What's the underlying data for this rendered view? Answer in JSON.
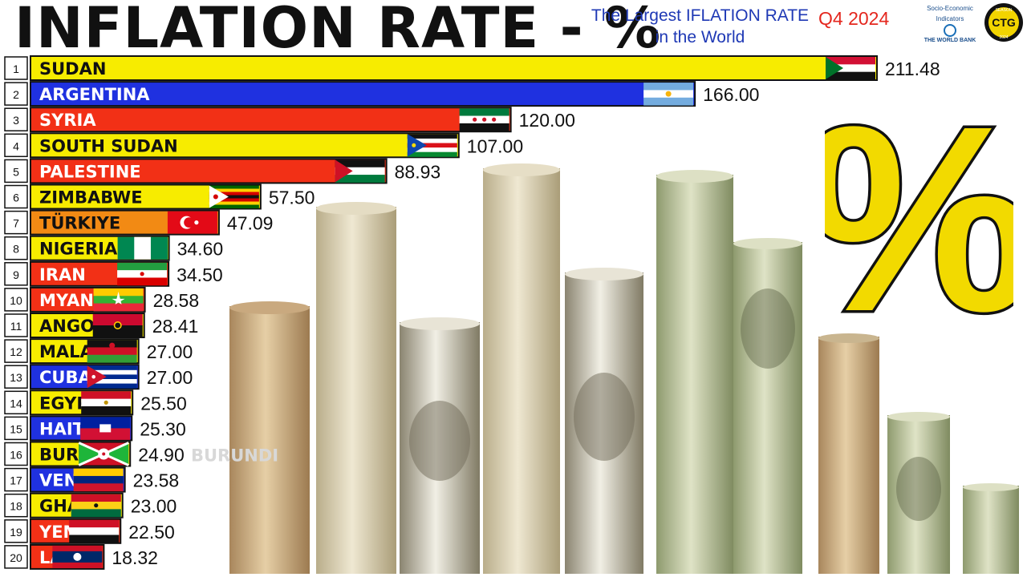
{
  "header": {
    "title": "INFLATION RATE - %",
    "subtitle_line1": "The Largest IFLATION RATE",
    "subtitle_line2": "in the World",
    "period": "Q4  2024"
  },
  "logos": {
    "worldbank_line1": "Socio-Economic",
    "worldbank_line2": "Indicators",
    "worldbank_line3": "THE WORLD BANK",
    "ctg_top": "SEASON",
    "ctg_mid": "CTG",
    "ctg_bottom": "2024"
  },
  "decor": {
    "percent_symbol": "%",
    "percent_color": "#f2da00"
  },
  "chart_data": {
    "type": "bar",
    "orientation": "horizontal",
    "title": "INFLATION RATE - %",
    "categories": [
      "SUDAN",
      "ARGENTINA",
      "SYRIA",
      "SOUTH SUDAN",
      "PALESTINE",
      "ZIMBABWE",
      "TÜRKIYE",
      "NIGERIA",
      "IRAN",
      "MYANMAR",
      "ANGOLA",
      "MALAWI",
      "CUBA",
      "EGYPT",
      "HAITI",
      "BURUNDI",
      "VENEZUELA",
      "GHANA",
      "YEMEN",
      "LAOS"
    ],
    "visible_labels": [
      "SUDAN",
      "ARGENTINA",
      "SYRIA",
      "SOUTH SUDAN",
      "PALESTINE",
      "ZIMBABWE",
      "TÜRKIYE",
      "NIGERIA",
      "IRAN",
      "MYANM",
      "ANGOL",
      "MALAV",
      "CUBA",
      "EGYP",
      "HAIT",
      "BURU",
      "VENE",
      "GHA",
      "YEM",
      "LA"
    ],
    "ranks": [
      "1",
      "2",
      "3",
      "4",
      "5",
      "6",
      "7",
      "8",
      "9",
      "10",
      "11",
      "12",
      "13",
      "14",
      "15",
      "16",
      "17",
      "18",
      "19",
      "20"
    ],
    "values": [
      211.48,
      166.0,
      120.0,
      107.0,
      88.93,
      57.5,
      47.09,
      34.6,
      34.5,
      28.58,
      28.41,
      27.0,
      27.0,
      25.5,
      25.3,
      24.9,
      23.58,
      23.0,
      22.5,
      18.32
    ],
    "value_labels": [
      "211.48",
      "166.00",
      "120.00",
      "107.00",
      "88.93",
      "57.50",
      "47.09",
      "34.60",
      "34.50",
      "28.58",
      "28.41",
      "27.00",
      "27.00",
      "25.50",
      "25.30",
      "24.90",
      "23.58",
      "23.00",
      "22.50",
      "18.32"
    ],
    "bar_colors": [
      "#f7ec00",
      "#1f31e0",
      "#f23016",
      "#f7ec00",
      "#f23016",
      "#f7ec00",
      "#f28a14",
      "#f7ec00",
      "#f23016",
      "#f23016",
      "#f7ec00",
      "#f7ec00",
      "#1f31e0",
      "#f7ec00",
      "#1f31e0",
      "#f7ec00",
      "#1f31e0",
      "#f7ec00",
      "#f23016",
      "#f23016"
    ],
    "label_colors": [
      "#111111",
      "#ffffff",
      "#ffffff",
      "#111111",
      "#ffffff",
      "#111111",
      "#111111",
      "#111111",
      "#ffffff",
      "#ffffff",
      "#111111",
      "#111111",
      "#ffffff",
      "#111111",
      "#ffffff",
      "#111111",
      "#ffffff",
      "#111111",
      "#ffffff",
      "#ffffff"
    ],
    "flags": [
      "sudan-flag",
      "argentina-flag",
      "syria-flag",
      "south-sudan-flag",
      "palestine-flag",
      "zimbabwe-flag",
      "turkiye-flag",
      "nigeria-flag",
      "iran-flag",
      "myanmar-flag",
      "angola-flag",
      "malawi-flag",
      "cuba-flag",
      "egypt-flag",
      "haiti-flag",
      "burundi-flag",
      "venezuela-flag",
      "ghana-flag",
      "yemen-flag",
      "laos-flag"
    ],
    "ghost_label": "BURUNDI",
    "xlim": [
      0,
      211.48
    ],
    "grid": false,
    "legend": "none"
  }
}
